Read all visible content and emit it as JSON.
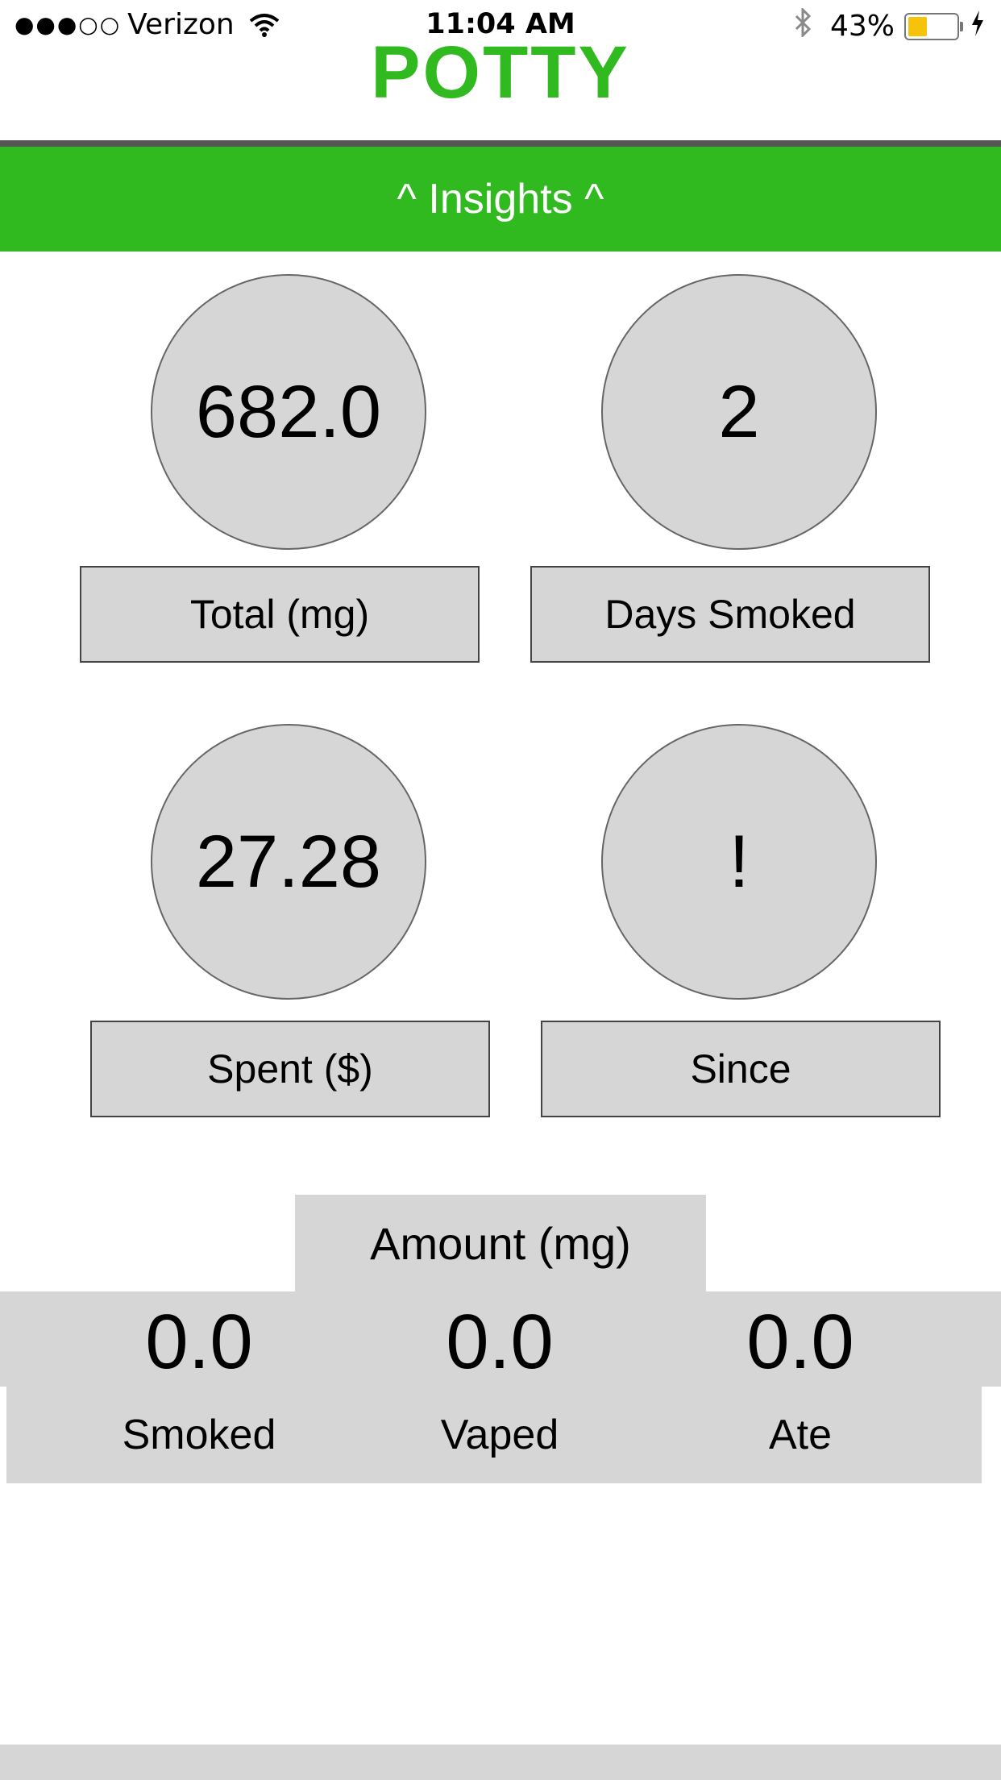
{
  "status_bar": {
    "signal_dots": "●●●○○",
    "carrier": "Verizon",
    "time": "11:04 AM",
    "battery_percent": "43%",
    "battery_level": 0.43,
    "battery_color": "#f6c30a"
  },
  "app": {
    "title": "POTTY",
    "brand_color": "#31ba20"
  },
  "insights_bar": {
    "label": "^ Insights ^"
  },
  "stats": [
    {
      "value": "682.0",
      "label": "Total (mg)"
    },
    {
      "value": "2",
      "label": "Days Smoked"
    },
    {
      "value": "27.28",
      "label": "Spent ($)"
    },
    {
      "value": "!",
      "label": "Since"
    }
  ],
  "amount": {
    "title": "Amount (mg)",
    "columns": [
      {
        "value": "0.0",
        "label": "Smoked"
      },
      {
        "value": "0.0",
        "label": "Vaped"
      },
      {
        "value": "0.0",
        "label": "Ate"
      }
    ]
  }
}
